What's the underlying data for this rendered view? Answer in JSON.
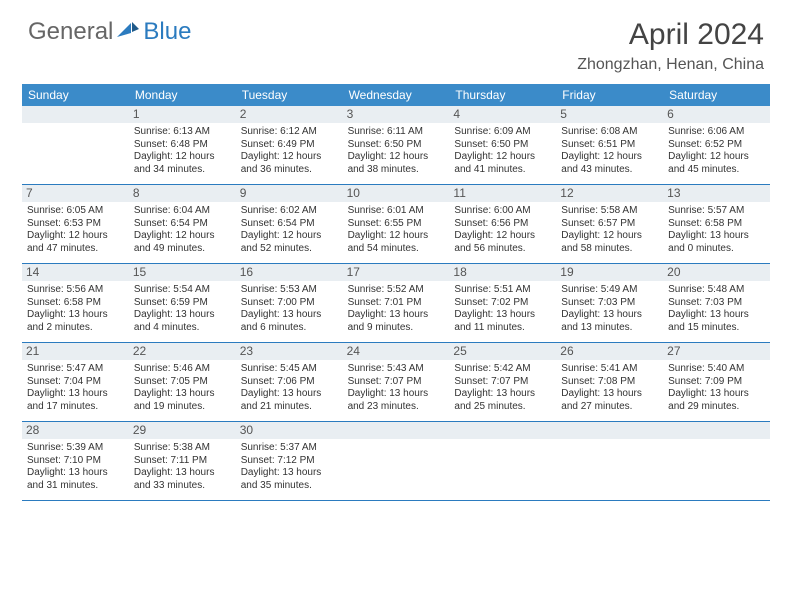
{
  "brand": {
    "part1": "General",
    "part2": "Blue"
  },
  "title": "April 2024",
  "location": "Zhongzhan, Henan, China",
  "colors": {
    "header_bg": "#3b8bc9",
    "rule": "#2b7bbf",
    "daynum_bg": "#e9eef2",
    "text": "#333333",
    "title": "#444444"
  },
  "days_of_week": [
    "Sunday",
    "Monday",
    "Tuesday",
    "Wednesday",
    "Thursday",
    "Friday",
    "Saturday"
  ],
  "weeks": [
    [
      {
        "n": "",
        "t": ""
      },
      {
        "n": "1",
        "t": "Sunrise: 6:13 AM\nSunset: 6:48 PM\nDaylight: 12 hours and 34 minutes."
      },
      {
        "n": "2",
        "t": "Sunrise: 6:12 AM\nSunset: 6:49 PM\nDaylight: 12 hours and 36 minutes."
      },
      {
        "n": "3",
        "t": "Sunrise: 6:11 AM\nSunset: 6:50 PM\nDaylight: 12 hours and 38 minutes."
      },
      {
        "n": "4",
        "t": "Sunrise: 6:09 AM\nSunset: 6:50 PM\nDaylight: 12 hours and 41 minutes."
      },
      {
        "n": "5",
        "t": "Sunrise: 6:08 AM\nSunset: 6:51 PM\nDaylight: 12 hours and 43 minutes."
      },
      {
        "n": "6",
        "t": "Sunrise: 6:06 AM\nSunset: 6:52 PM\nDaylight: 12 hours and 45 minutes."
      }
    ],
    [
      {
        "n": "7",
        "t": "Sunrise: 6:05 AM\nSunset: 6:53 PM\nDaylight: 12 hours and 47 minutes."
      },
      {
        "n": "8",
        "t": "Sunrise: 6:04 AM\nSunset: 6:54 PM\nDaylight: 12 hours and 49 minutes."
      },
      {
        "n": "9",
        "t": "Sunrise: 6:02 AM\nSunset: 6:54 PM\nDaylight: 12 hours and 52 minutes."
      },
      {
        "n": "10",
        "t": "Sunrise: 6:01 AM\nSunset: 6:55 PM\nDaylight: 12 hours and 54 minutes."
      },
      {
        "n": "11",
        "t": "Sunrise: 6:00 AM\nSunset: 6:56 PM\nDaylight: 12 hours and 56 minutes."
      },
      {
        "n": "12",
        "t": "Sunrise: 5:58 AM\nSunset: 6:57 PM\nDaylight: 12 hours and 58 minutes."
      },
      {
        "n": "13",
        "t": "Sunrise: 5:57 AM\nSunset: 6:58 PM\nDaylight: 13 hours and 0 minutes."
      }
    ],
    [
      {
        "n": "14",
        "t": "Sunrise: 5:56 AM\nSunset: 6:58 PM\nDaylight: 13 hours and 2 minutes."
      },
      {
        "n": "15",
        "t": "Sunrise: 5:54 AM\nSunset: 6:59 PM\nDaylight: 13 hours and 4 minutes."
      },
      {
        "n": "16",
        "t": "Sunrise: 5:53 AM\nSunset: 7:00 PM\nDaylight: 13 hours and 6 minutes."
      },
      {
        "n": "17",
        "t": "Sunrise: 5:52 AM\nSunset: 7:01 PM\nDaylight: 13 hours and 9 minutes."
      },
      {
        "n": "18",
        "t": "Sunrise: 5:51 AM\nSunset: 7:02 PM\nDaylight: 13 hours and 11 minutes."
      },
      {
        "n": "19",
        "t": "Sunrise: 5:49 AM\nSunset: 7:03 PM\nDaylight: 13 hours and 13 minutes."
      },
      {
        "n": "20",
        "t": "Sunrise: 5:48 AM\nSunset: 7:03 PM\nDaylight: 13 hours and 15 minutes."
      }
    ],
    [
      {
        "n": "21",
        "t": "Sunrise: 5:47 AM\nSunset: 7:04 PM\nDaylight: 13 hours and 17 minutes."
      },
      {
        "n": "22",
        "t": "Sunrise: 5:46 AM\nSunset: 7:05 PM\nDaylight: 13 hours and 19 minutes."
      },
      {
        "n": "23",
        "t": "Sunrise: 5:45 AM\nSunset: 7:06 PM\nDaylight: 13 hours and 21 minutes."
      },
      {
        "n": "24",
        "t": "Sunrise: 5:43 AM\nSunset: 7:07 PM\nDaylight: 13 hours and 23 minutes."
      },
      {
        "n": "25",
        "t": "Sunrise: 5:42 AM\nSunset: 7:07 PM\nDaylight: 13 hours and 25 minutes."
      },
      {
        "n": "26",
        "t": "Sunrise: 5:41 AM\nSunset: 7:08 PM\nDaylight: 13 hours and 27 minutes."
      },
      {
        "n": "27",
        "t": "Sunrise: 5:40 AM\nSunset: 7:09 PM\nDaylight: 13 hours and 29 minutes."
      }
    ],
    [
      {
        "n": "28",
        "t": "Sunrise: 5:39 AM\nSunset: 7:10 PM\nDaylight: 13 hours and 31 minutes."
      },
      {
        "n": "29",
        "t": "Sunrise: 5:38 AM\nSunset: 7:11 PM\nDaylight: 13 hours and 33 minutes."
      },
      {
        "n": "30",
        "t": "Sunrise: 5:37 AM\nSunset: 7:12 PM\nDaylight: 13 hours and 35 minutes."
      },
      {
        "n": "",
        "t": ""
      },
      {
        "n": "",
        "t": ""
      },
      {
        "n": "",
        "t": ""
      },
      {
        "n": "",
        "t": ""
      }
    ]
  ]
}
